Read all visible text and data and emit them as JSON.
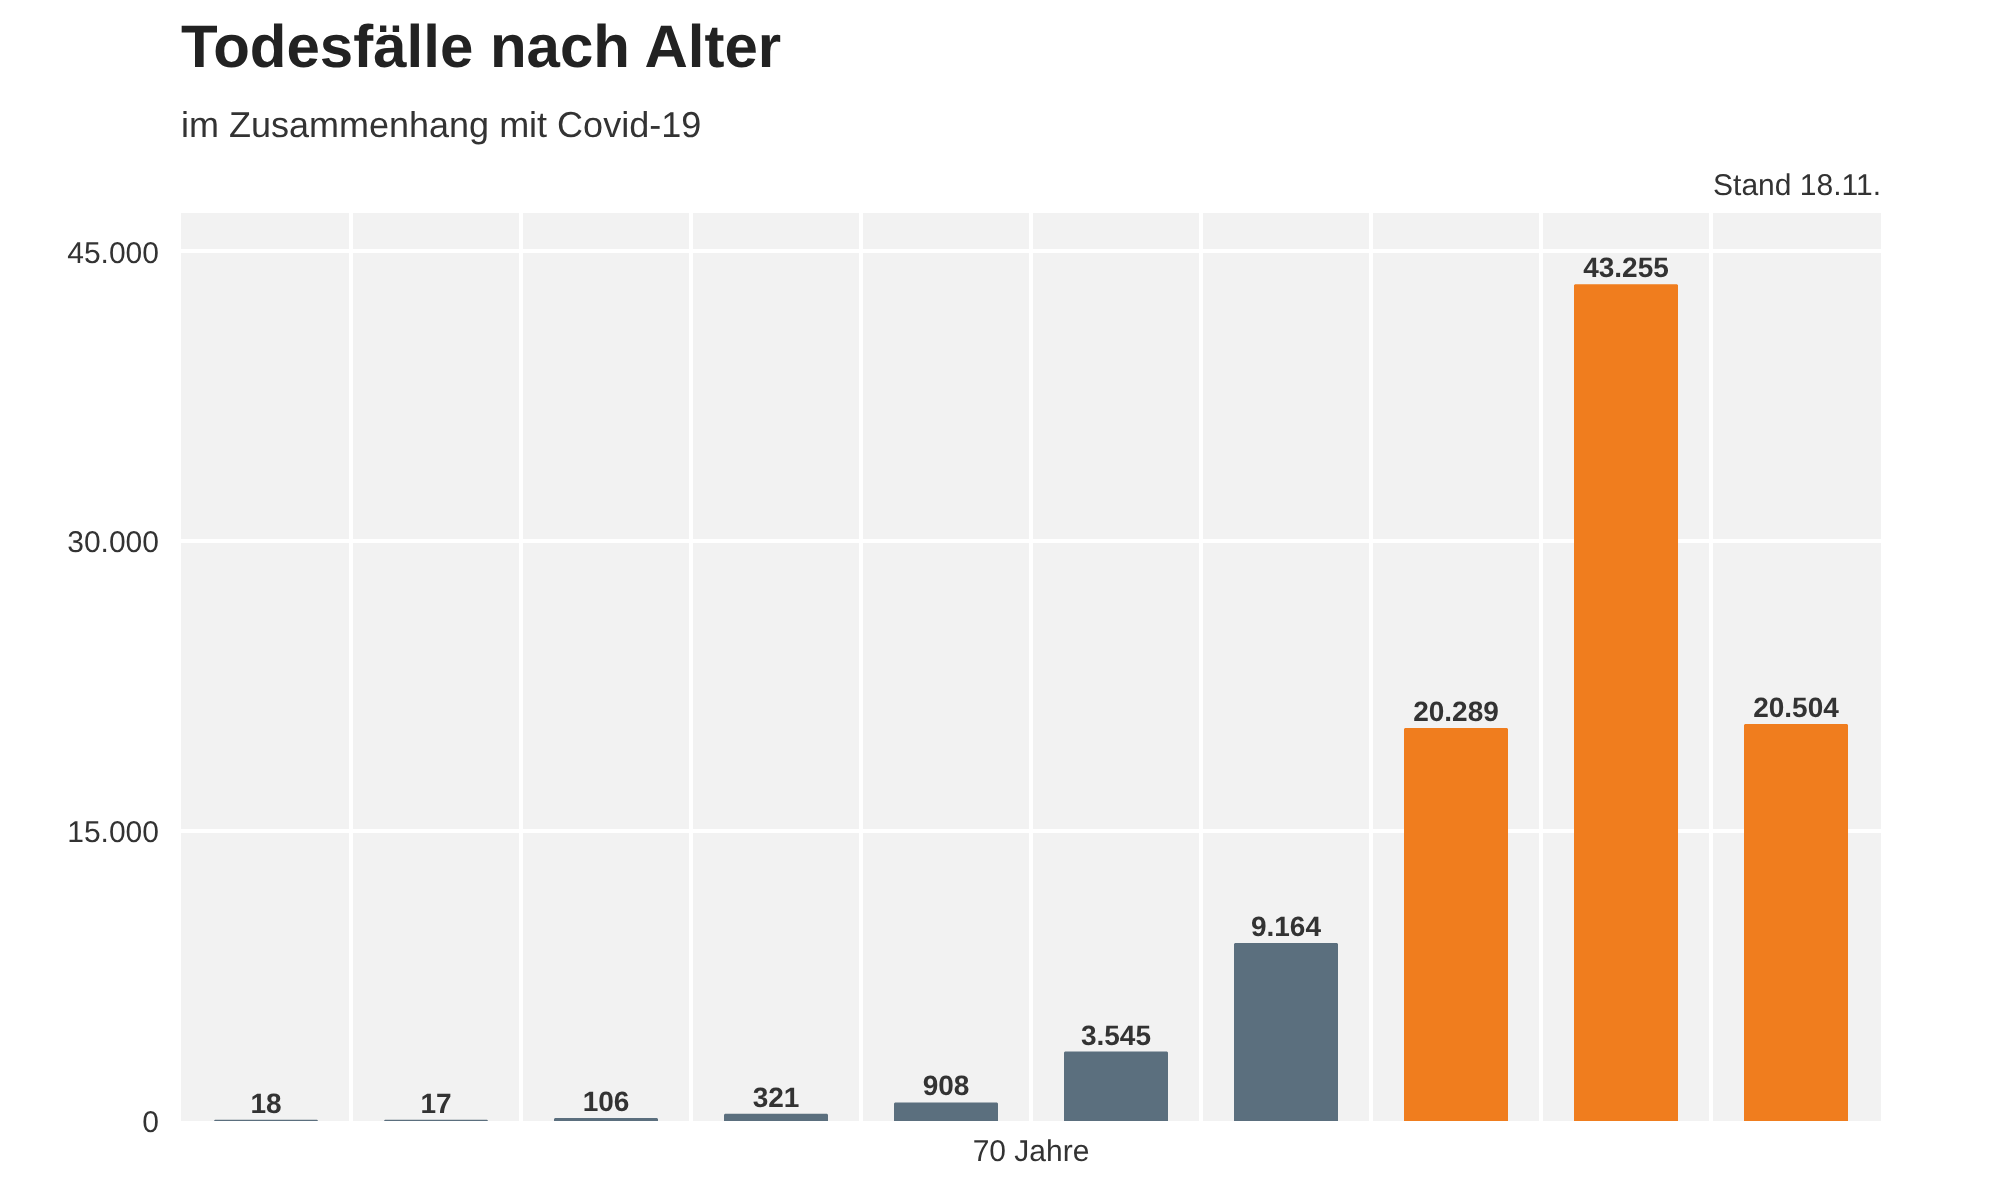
{
  "chart_data": {
    "type": "bar",
    "title": "Todesfälle nach Alter",
    "subtitle": "im Zusammenhang mit Covid-19",
    "annotations": [
      "Stand 18.11.",
      "70 Jahre"
    ],
    "categories": [
      null,
      null,
      null,
      null,
      null,
      null,
      null,
      null,
      null,
      null
    ],
    "values": [
      18,
      17,
      106,
      321,
      908,
      3545,
      9164,
      20289,
      43255,
      20504
    ],
    "value_labels": [
      "18",
      "17",
      "106",
      "321",
      "908",
      "3.545",
      "9.164",
      "20.289",
      "43.255",
      "20.504"
    ],
    "colors": [
      "#5b6f7e",
      "#5b6f7e",
      "#5b6f7e",
      "#5b6f7e",
      "#5b6f7e",
      "#5b6f7e",
      "#5b6f7e",
      "#f07d1e",
      "#f07d1e",
      "#f07d1e"
    ],
    "ylim": [
      0,
      47000
    ],
    "yticks": [
      {
        "value": 0,
        "label": "0"
      },
      {
        "value": 15000,
        "label": "15.000"
      },
      {
        "value": 30000,
        "label": "30.000"
      },
      {
        "value": 45000,
        "label": "45.000"
      }
    ],
    "tick_labels": "y",
    "grid": true
  }
}
